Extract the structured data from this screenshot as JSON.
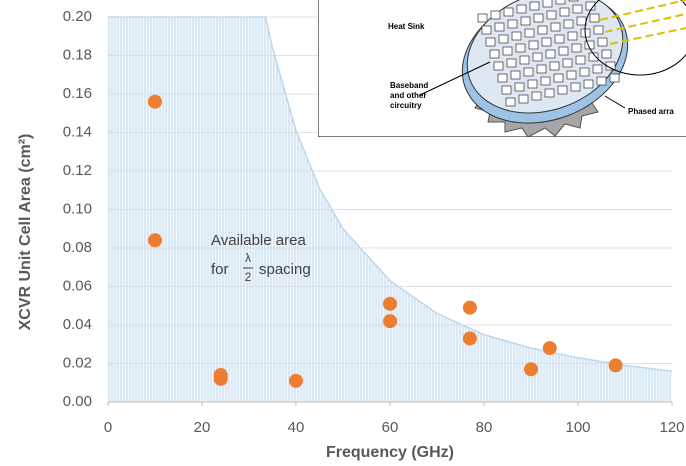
{
  "chart_data": {
    "type": "scatter",
    "x_label": "Frequency (GHz)",
    "y_label": "XCVR Unit Cell Area (cm²)",
    "xlim": [
      0,
      120
    ],
    "ylim": [
      0,
      0.2
    ],
    "xticks": [
      0,
      20,
      40,
      60,
      80,
      100,
      120
    ],
    "yticks": [
      {
        "value": 0,
        "label": "0.00"
      },
      {
        "value": 0.02,
        "label": "0.02"
      },
      {
        "value": 0.04,
        "label": "0.04"
      },
      {
        "value": 0.06,
        "label": "0.06"
      },
      {
        "value": 0.08,
        "label": "0.08"
      },
      {
        "value": 0.1,
        "label": "0.10"
      },
      {
        "value": 0.12,
        "label": "0.12"
      },
      {
        "value": 0.14,
        "label": "0.14"
      },
      {
        "value": 0.16,
        "label": "0.16"
      },
      {
        "value": 0.18,
        "label": "0.18"
      },
      {
        "value": 0.2,
        "label": "0.20"
      }
    ],
    "grid": true,
    "area": {
      "color": "#bdd7ee",
      "x": [
        0,
        33.5,
        35,
        40,
        45,
        50,
        60,
        70,
        80,
        90,
        100,
        110,
        120
      ],
      "values": [
        0.2,
        0.2,
        0.184,
        0.141,
        0.111,
        0.09,
        0.063,
        0.046,
        0.035,
        0.028,
        0.023,
        0.019,
        0.016
      ]
    },
    "points": {
      "color": "#ed7d31",
      "x": [
        10,
        10,
        24,
        24,
        40,
        60,
        60,
        77,
        77,
        90,
        94,
        108
      ],
      "values": [
        0.156,
        0.084,
        0.014,
        0.012,
        0.011,
        0.051,
        0.042,
        0.049,
        0.033,
        0.017,
        0.028,
        0.019
      ]
    },
    "annotation": {
      "line1": "Available area",
      "for": "for",
      "numerator": "λ",
      "denominator": "2",
      "spacing": "spacing"
    }
  },
  "inset": {
    "heat_sink": "Heat Sink",
    "baseband": [
      "Baseband",
      "and other",
      "circuitry"
    ],
    "phased_array": "Phased arra"
  }
}
